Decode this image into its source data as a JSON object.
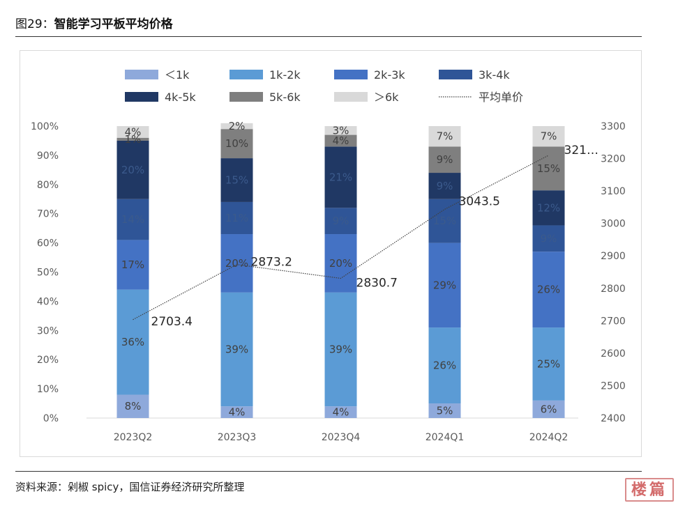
{
  "figure": {
    "label": "图29：",
    "title": "智能学习平板平均价格",
    "source": "资料来源：剁椒 spicy，国信证券经济研究所整理",
    "stamp": "楼篇"
  },
  "chart_data": {
    "type": "bar",
    "stacked": true,
    "percent": true,
    "categories": [
      "2023Q2",
      "2023Q3",
      "2023Q4",
      "2024Q1",
      "2024Q2"
    ],
    "series": [
      {
        "name": "＜1k",
        "color": "#8ea9db",
        "values": [
          8,
          4,
          4,
          5,
          6
        ],
        "labels": [
          "8%",
          "4%",
          "4%",
          "5%",
          "6%"
        ]
      },
      {
        "name": "1k-2k",
        "color": "#5b9bd5",
        "values": [
          36,
          39,
          39,
          26,
          25
        ],
        "labels": [
          "36%",
          "39%",
          "39%",
          "26%",
          "25%"
        ]
      },
      {
        "name": "2k-3k",
        "color": "#4472c4",
        "values": [
          17,
          20,
          20,
          29,
          26
        ],
        "labels": [
          "17%",
          "20%",
          "20%",
          "29%",
          "26%"
        ]
      },
      {
        "name": "3k-4k",
        "color": "#2f5597",
        "values": [
          14,
          11,
          9,
          15,
          9
        ],
        "labels": [
          "14%",
          "11%",
          "9%",
          "15%",
          "9%"
        ]
      },
      {
        "name": "4k-5k",
        "color": "#203864",
        "values": [
          20,
          15,
          21,
          9,
          12
        ],
        "labels": [
          "20%",
          "15%",
          "21%",
          "9%",
          "12%"
        ]
      },
      {
        "name": "5k-6k",
        "color": "#7f7f7f",
        "values": [
          1,
          10,
          4,
          9,
          15
        ],
        "labels": [
          "1%",
          "10%",
          "4%",
          "9%",
          "15%"
        ]
      },
      {
        "name": "＞6k",
        "color": "#d9d9d9",
        "values": [
          4,
          2,
          3,
          7,
          7
        ],
        "labels": [
          "4%",
          "2%",
          "3%",
          "7%",
          "7%"
        ]
      }
    ],
    "line": {
      "name": "平均单价",
      "values": [
        2703.4,
        2873.2,
        2830.7,
        3043.5,
        3210
      ],
      "labels": [
        "2703.4",
        "2873.2",
        "2830.7",
        "3043.5",
        "321…"
      ]
    },
    "y_left": {
      "min": 0,
      "max": 100,
      "ticks": [
        "0%",
        "10%",
        "20%",
        "30%",
        "40%",
        "50%",
        "60%",
        "70%",
        "80%",
        "90%",
        "100%"
      ]
    },
    "y_right": {
      "min": 2400,
      "max": 3300,
      "ticks": [
        "2400",
        "2500",
        "2600",
        "2700",
        "2800",
        "2900",
        "3000",
        "3100",
        "3200",
        "3300"
      ]
    },
    "legend_position": "top"
  }
}
